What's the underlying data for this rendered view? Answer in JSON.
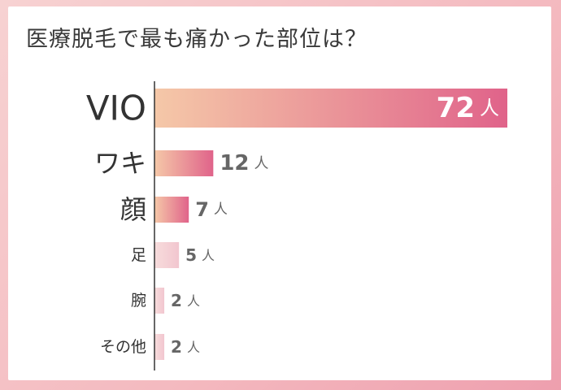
{
  "title": "医療脱毛で最も痛かった部位は？",
  "unit": "人",
  "colors": {
    "bar_start": "#f5c8a8",
    "bar_end": "#e0638a",
    "light_start": "#f7dcdc",
    "light_end": "#f2c6cf",
    "axis": "#333333",
    "label": "#333333",
    "value_text": "#666666",
    "value_text_inside": "#ffffff"
  },
  "chart_data": {
    "type": "bar",
    "orientation": "horizontal",
    "title": "医療脱毛で最も痛かった部位は？",
    "categories": [
      "VIO",
      "ワキ",
      "顔",
      "足",
      "腕",
      "その他"
    ],
    "values": [
      72,
      12,
      7,
      5,
      2,
      2
    ],
    "value_labels": [
      "72",
      "12",
      "7",
      "5",
      "2",
      "2"
    ],
    "unit": "人",
    "xlim": [
      0,
      72
    ],
    "grid": false,
    "legend": "none"
  }
}
